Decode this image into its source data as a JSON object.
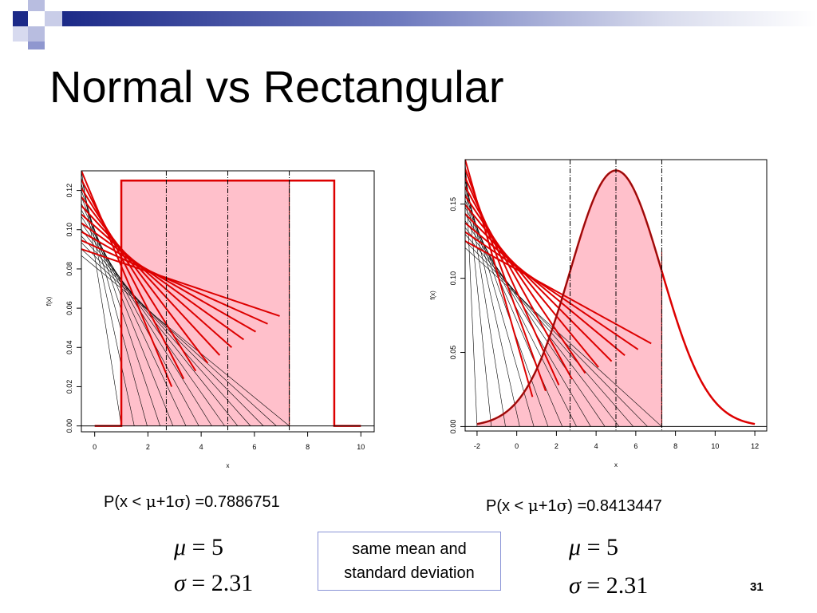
{
  "slide": {
    "title": "Normal vs Rectangular",
    "page_number": "31",
    "accent_color": "#1c2a88",
    "note_line1": "same mean and",
    "note_line2": "standard deviation"
  },
  "left": {
    "prob_prefix": "P(x < ",
    "prob_mu": "μ",
    "prob_mid": "+1",
    "prob_sigma": "σ",
    "prob_suffix": ") =0.7886751",
    "mu_symbol": "μ",
    "mu_eq": " = ",
    "mu_value": "5",
    "sigma_symbol": "σ",
    "sigma_eq": " = ",
    "sigma_value": "2.31"
  },
  "right": {
    "prob_prefix": "P(x < ",
    "prob_mu": "μ",
    "prob_mid": "+1",
    "prob_sigma": "σ",
    "prob_suffix": ") =0.8413447",
    "mu_symbol": "μ",
    "mu_eq": " = ",
    "mu_value": "5",
    "sigma_symbol": "σ",
    "sigma_eq": " = ",
    "sigma_value": "2.31"
  },
  "chart_data": [
    {
      "type": "area",
      "distribution": "rectangular",
      "xlabel": "x",
      "ylabel": "f(x)",
      "xlim": [
        -0.5,
        10.5
      ],
      "ylim": [
        -0.003,
        0.13
      ],
      "xticks": [
        0,
        2,
        4,
        6,
        8,
        10
      ],
      "yticks": [
        0.0,
        0.02,
        0.04,
        0.06,
        0.08,
        0.1,
        0.12
      ],
      "xtick_labels": [
        "0",
        "2",
        "4",
        "6",
        "8",
        "10"
      ],
      "ytick_labels": [
        "0.00",
        "0.02",
        "0.04",
        "0.06",
        "0.08",
        "0.10",
        "0.12"
      ],
      "density": {
        "x": [
          0,
          1,
          1,
          9,
          9,
          10
        ],
        "y": [
          0,
          0,
          0.125,
          0.125,
          0,
          0
        ]
      },
      "shaded_region": [
        1,
        7.31
      ],
      "vlines": [
        2.69,
        5,
        7.31
      ],
      "grid": false,
      "line_color": "#dd0000",
      "fill_color": "#ffc0cb"
    },
    {
      "type": "area",
      "distribution": "normal",
      "xlabel": "x",
      "ylabel": "f(x)",
      "xlim": [
        -2.6,
        12.6
      ],
      "ylim": [
        -0.003,
        0.18
      ],
      "xticks": [
        -2,
        0,
        2,
        4,
        6,
        8,
        10,
        12
      ],
      "yticks": [
        0.0,
        0.05,
        0.1,
        0.15
      ],
      "xtick_labels": [
        "-2",
        "0",
        "2",
        "4",
        "6",
        "8",
        "10",
        "12"
      ],
      "ytick_labels": [
        "0.00",
        "0.05",
        "0.10",
        "0.15"
      ],
      "mean": 5,
      "sd": 2.31,
      "density_range": [
        -2,
        12
      ],
      "shaded_region": [
        -2,
        7.31
      ],
      "vlines": [
        2.69,
        5,
        7.31
      ],
      "grid": false,
      "line_color": "#dd0000",
      "fill_color": "#ffc0cb"
    }
  ]
}
